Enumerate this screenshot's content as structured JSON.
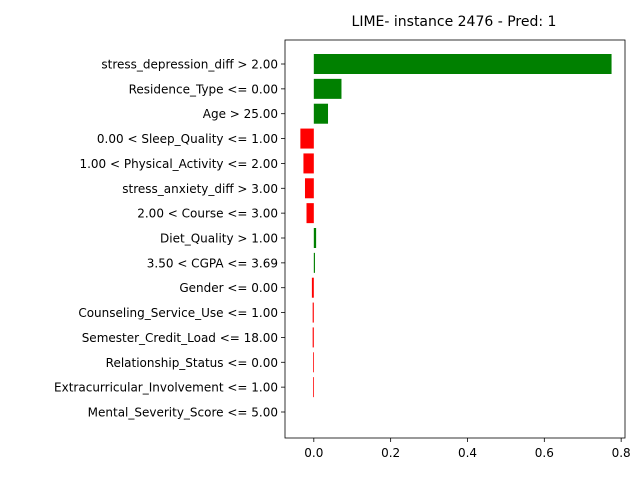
{
  "chart_data": {
    "type": "bar",
    "orientation": "horizontal",
    "title": "LIME- instance 2476 - Pred: 1",
    "xlabel": "",
    "ylabel": "",
    "xlim": [
      -0.075,
      0.81
    ],
    "xticks": [
      0.0,
      0.2,
      0.4,
      0.6,
      0.8
    ],
    "xtick_labels": [
      "0.0",
      "0.2",
      "0.4",
      "0.6",
      "0.8"
    ],
    "grid": false,
    "colors": {
      "positive": "#008000",
      "negative": "#ff0000"
    },
    "categories": [
      "stress_depression_diff > 2.00",
      "Residence_Type <= 0.00",
      "Age > 25.00",
      "0.00 < Sleep_Quality <= 1.00",
      "1.00 < Physical_Activity <= 2.00",
      "stress_anxiety_diff > 3.00",
      "2.00 < Course <= 3.00",
      "Diet_Quality > 1.00",
      "3.50 < CGPA <= 3.69",
      "Gender <= 0.00",
      "Counseling_Service_Use <= 1.00",
      "Semester_Credit_Load <= 18.00",
      "Relationship_Status <= 0.00",
      "Extracurricular_Involvement <= 1.00",
      "Mental_Severity_Score <= 5.00"
    ],
    "values": [
      0.775,
      0.072,
      0.037,
      -0.035,
      -0.027,
      -0.023,
      -0.019,
      0.006,
      0.003,
      -0.005,
      -0.003,
      -0.003,
      -0.002,
      -0.002,
      0.0
    ]
  }
}
